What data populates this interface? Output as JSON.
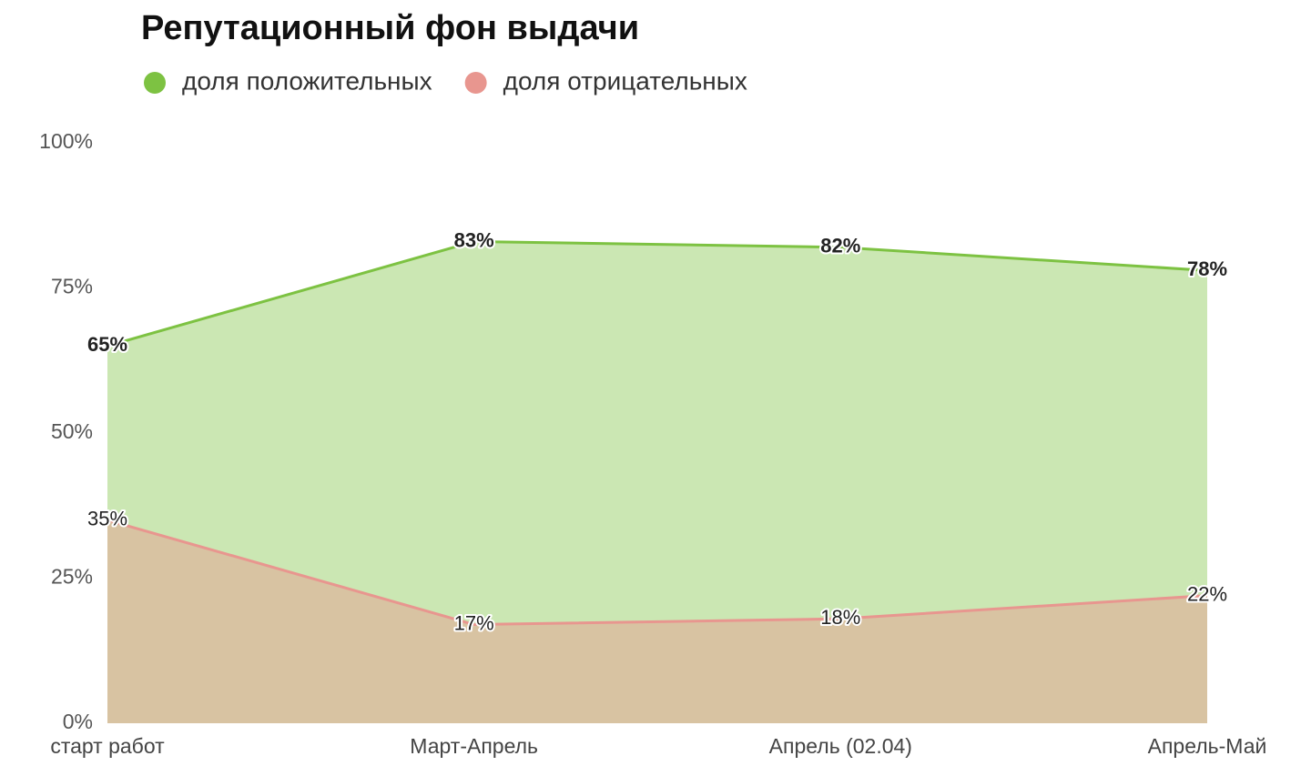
{
  "chart_data": {
    "type": "area",
    "title": "Репутационный фон выдачи",
    "categories": [
      "старт работ",
      "Март-Апрель",
      "Апрель (02.04)",
      "Апрель-Май"
    ],
    "series": [
      {
        "name": "доля положительных",
        "color": "#7dc242",
        "values": [
          65,
          83,
          82,
          78
        ],
        "value_labels": [
          "65%",
          "83%",
          "82%",
          "78%"
        ]
      },
      {
        "name": "доля отрицательных",
        "color": "#e8968f",
        "values": [
          35,
          17,
          18,
          22
        ],
        "value_labels": [
          "35%",
          "17%",
          "18%",
          "22%"
        ]
      }
    ],
    "ylim": [
      0,
      100
    ],
    "yticks": [
      {
        "value": 0,
        "label": "0%"
      },
      {
        "value": 25,
        "label": "25%"
      },
      {
        "value": 50,
        "label": "50%"
      },
      {
        "value": 75,
        "label": "75%"
      },
      {
        "value": 100,
        "label": "100%"
      }
    ],
    "legend": "top"
  }
}
